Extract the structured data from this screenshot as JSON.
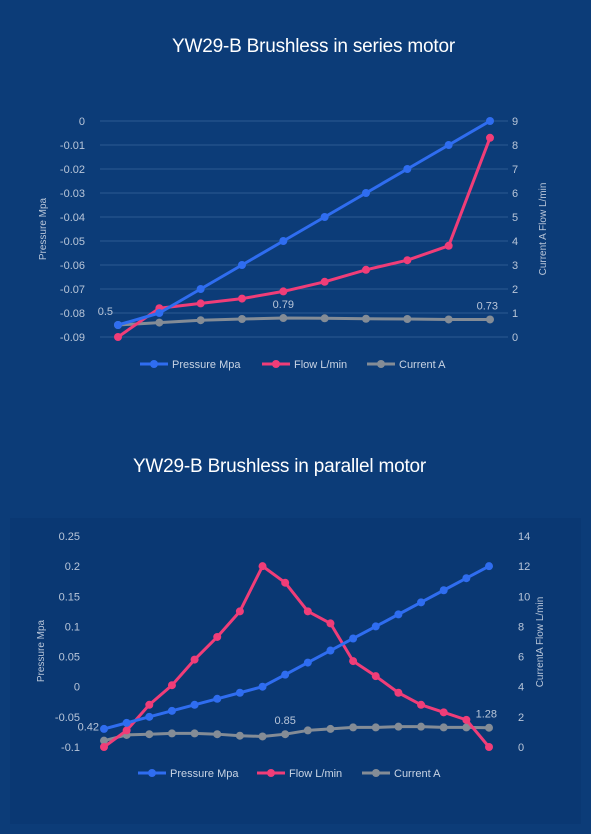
{
  "colors": {
    "background": "#0c3c78",
    "pressure": "#2f6df0",
    "flow": "#f03d78",
    "current": "#848c96",
    "grid": "#2b5a92",
    "text": "#b9c6d9"
  },
  "chart_data": [
    {
      "type": "line",
      "title": "YW29-B Brushless in series motor",
      "ylabel": "Pressure Mpa",
      "y2label": "Current A  Flow L/min",
      "ylim": [
        -0.09,
        0
      ],
      "y_ticks": [
        "0",
        "-0.01",
        "-0.02",
        "-0.03",
        "-0.04",
        "-0.05",
        "-0.06",
        "-0.07",
        "-0.08",
        "-0.09"
      ],
      "y2lim": [
        0,
        9
      ],
      "y2_ticks": [
        "9",
        "8",
        "7",
        "6",
        "5",
        "4",
        "3",
        "2",
        "1",
        "0"
      ],
      "grid": true,
      "legend_position": "bottom",
      "series": [
        {
          "name": "Pressure Mpa",
          "axis": "left",
          "values": [
            -0.085,
            -0.08,
            -0.07,
            -0.06,
            -0.05,
            -0.04,
            -0.03,
            -0.02,
            -0.01,
            0
          ]
        },
        {
          "name": "Flow L/min",
          "axis": "right",
          "values": [
            0,
            1.2,
            1.4,
            1.6,
            1.9,
            2.3,
            2.8,
            3.2,
            3.8,
            8.3
          ]
        },
        {
          "name": "Current A",
          "axis": "right",
          "values": [
            0.5,
            0.6,
            0.7,
            0.75,
            0.79,
            0.78,
            0.76,
            0.75,
            0.73,
            0.73
          ]
        }
      ],
      "annotations": [
        {
          "series": "Current A",
          "index": 0,
          "text": "0.5"
        },
        {
          "series": "Current A",
          "index": 4,
          "text": "0.79"
        },
        {
          "series": "Current A",
          "index": 9,
          "text": "0.73"
        }
      ]
    },
    {
      "type": "line",
      "title": "YW29-B Brushless in parallel motor",
      "ylabel": "Pressure Mpa",
      "y2label": "CurrentA  Flow L/min",
      "ylim": [
        -0.1,
        0.25
      ],
      "y_ticks": [
        "0.25",
        "0.2",
        "0.15",
        "0.1",
        "0.05",
        "0",
        "-0.05",
        "-0.1"
      ],
      "y2lim": [
        0,
        14
      ],
      "y2_ticks": [
        "14",
        "12",
        "10",
        "8",
        "6",
        "4",
        "2",
        "0"
      ],
      "grid": false,
      "legend_position": "bottom",
      "series": [
        {
          "name": "Pressure Mpa",
          "axis": "left",
          "values": [
            -0.07,
            -0.06,
            -0.05,
            -0.04,
            -0.03,
            -0.02,
            -0.01,
            0,
            0.02,
            0.04,
            0.06,
            0.08,
            0.1,
            0.12,
            0.14,
            0.16,
            0.18,
            0.2
          ]
        },
        {
          "name": "Flow L/min",
          "axis": "right",
          "values": [
            0,
            1.1,
            2.8,
            4.1,
            5.8,
            7.3,
            9.0,
            12.0,
            10.9,
            9.0,
            8.2,
            5.7,
            4.7,
            3.6,
            2.8,
            2.3,
            1.8,
            0
          ]
        },
        {
          "name": "Current A",
          "axis": "right",
          "values": [
            0.42,
            0.8,
            0.85,
            0.9,
            0.9,
            0.85,
            0.75,
            0.7,
            0.85,
            1.1,
            1.2,
            1.3,
            1.3,
            1.35,
            1.35,
            1.3,
            1.3,
            1.28
          ]
        }
      ],
      "annotations": [
        {
          "series": "Current A",
          "index": 0,
          "text": "0.42"
        },
        {
          "series": "Current A",
          "index": 8,
          "text": "0.85"
        },
        {
          "series": "Current A",
          "index": 17,
          "text": "1.28"
        }
      ]
    }
  ]
}
